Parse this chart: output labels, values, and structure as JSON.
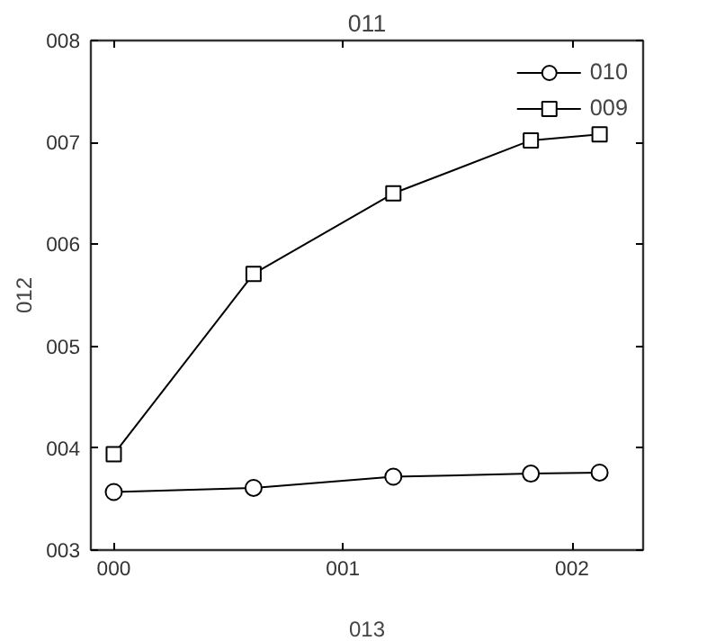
{
  "chart_data": {
    "type": "line",
    "title": "011",
    "xlabel": "013",
    "ylabel": "012",
    "x": [
      0,
      0.61,
      1.22,
      1.82,
      2.12
    ],
    "series": [
      {
        "name": "010",
        "color": "#000000",
        "marker": "circle",
        "values": [
          3.57,
          3.61,
          3.72,
          3.75,
          3.76
        ]
      },
      {
        "name": "009",
        "color": "#000000",
        "marker": "square",
        "values": [
          3.94,
          5.71,
          6.5,
          7.02,
          7.08
        ]
      }
    ],
    "xlim": [
      -0.1,
      2.31
    ],
    "ylim": [
      3,
      8
    ],
    "xticks": [
      {
        "value": 0,
        "label": "000"
      },
      {
        "value": 1,
        "label": "001"
      },
      {
        "value": 2,
        "label": "002"
      }
    ],
    "yticks": [
      {
        "value": 3,
        "label": "003"
      },
      {
        "value": 4,
        "label": "004"
      },
      {
        "value": 5,
        "label": "005"
      },
      {
        "value": 6,
        "label": "006"
      },
      {
        "value": 7,
        "label": "007"
      },
      {
        "value": 8,
        "label": "008"
      }
    ],
    "legend": "top right",
    "grid": false,
    "line_style": "solid"
  }
}
